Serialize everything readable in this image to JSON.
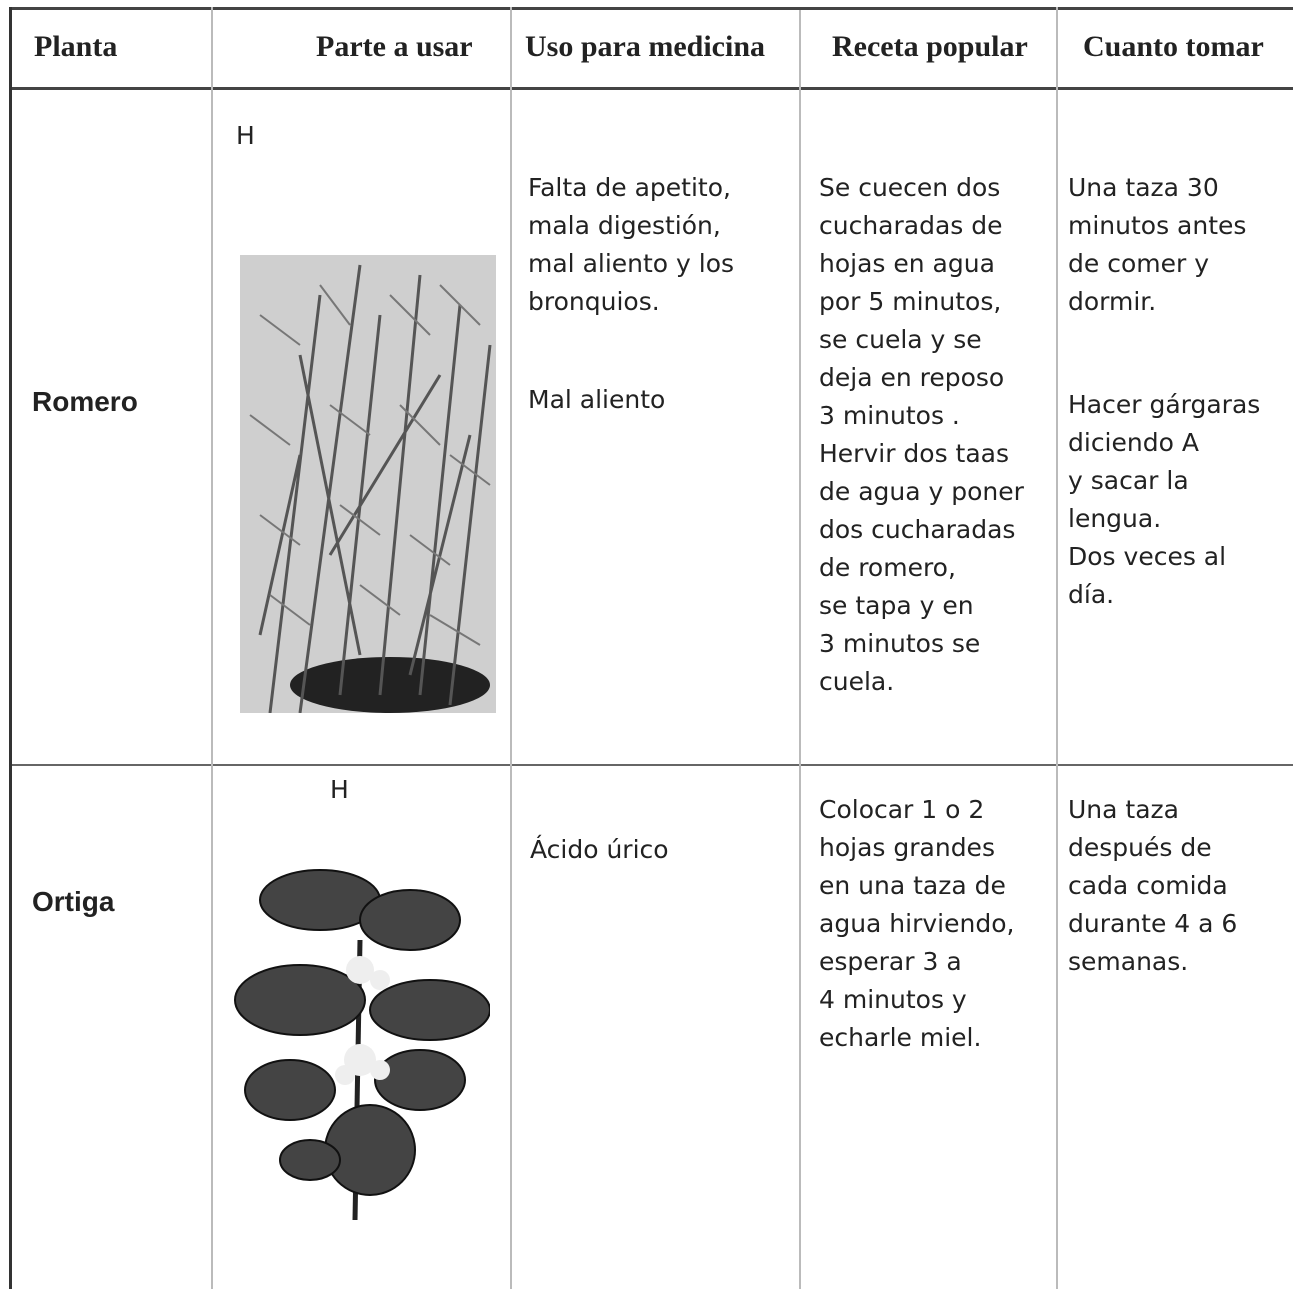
{
  "table": {
    "headers": [
      "Planta",
      "Parte a usar",
      "Uso para medicina",
      "Receta popular",
      "Cuanto tomar"
    ],
    "rows": [
      {
        "plant": "Romero",
        "part": "H",
        "uses": [
          [
            "Falta de apetito,",
            "mala digestión,",
            "mal aliento y los",
            "bronquios."
          ],
          [
            "Mal aliento"
          ]
        ],
        "recipe": [
          [
            "Se cuecen dos",
            "cucharadas de",
            "hojas en agua",
            "por 5 minutos,",
            "se cuela y se",
            "deja en reposo",
            "3 minutos .",
            "Hervir dos taas",
            "de agua y poner",
            "dos cucharadas",
            "de romero,",
            "se tapa y en",
            "3 minutos se",
            "cuela."
          ]
        ],
        "amount": [
          [
            "Una taza 30",
            "minutos antes",
            "de comer y",
            "dormir."
          ],
          [
            "Hacer gárgaras",
            "diciendo A",
            "y sacar la",
            "lengua.",
            "Dos veces al",
            "día."
          ]
        ]
      },
      {
        "plant": "Ortiga",
        "part": "H",
        "uses": [
          [
            "Ácido úrico"
          ]
        ],
        "recipe": [
          [
            "Colocar 1 o 2",
            "hojas grandes",
            "en una taza de",
            "agua hirviendo,",
            "esperar 3 a",
            "4 minutos y",
            "echarle miel."
          ]
        ],
        "amount": [
          [
            "Una taza",
            "después de",
            "cada comida",
            "durante 4 a 6",
            "semanas."
          ]
        ]
      }
    ]
  }
}
